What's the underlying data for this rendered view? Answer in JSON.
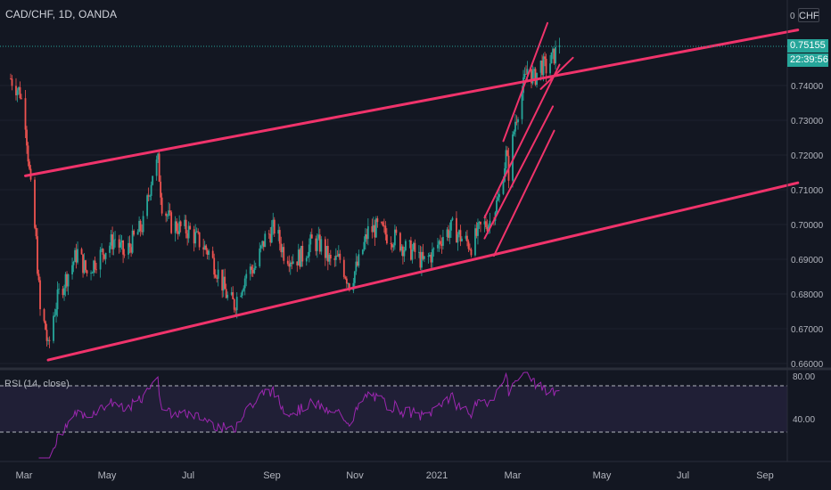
{
  "header": {
    "symbol": "CAD/CHF, 1D, OANDA",
    "currency_button": "CHF"
  },
  "price_axis": {
    "ticks": [
      "0.74000",
      "0.73000",
      "0.72000",
      "0.71000",
      "0.70000",
      "0.69000",
      "0.68000",
      "0.67000",
      "0.66000"
    ],
    "cut_tick": "0",
    "last_price": "0.75155",
    "countdown": "22:39:56"
  },
  "rsi": {
    "label": "RSI (14, close)",
    "ticks": [
      "80.00",
      "40.00"
    ]
  },
  "time_axis": {
    "labels": [
      "Mar",
      "May",
      "Jul",
      "Sep",
      "Nov",
      "2021",
      "Mar",
      "May",
      "Jul",
      "Sep"
    ]
  },
  "colors": {
    "background": "#131722",
    "up_candle": "#26a69a",
    "down_candle": "#ef5350",
    "trendline": "#f0336b",
    "rsi_line": "#9c27b0",
    "price_tag": "#26a69a"
  },
  "chart_data": {
    "type": "candlestick",
    "title": "CAD/CHF, 1D, OANDA",
    "ylim": [
      0.658,
      0.755
    ],
    "price_path": [
      [
        "2020-02-20",
        0.742
      ],
      [
        "2020-02-27",
        0.738
      ],
      [
        "2020-03-02",
        0.73
      ],
      [
        "2020-03-06",
        0.71
      ],
      [
        "2020-03-10",
        0.695
      ],
      [
        "2020-03-13",
        0.675
      ],
      [
        "2020-03-17",
        0.67
      ],
      [
        "2020-03-19",
        0.664
      ],
      [
        "2020-03-23",
        0.674
      ],
      [
        "2020-03-27",
        0.68
      ],
      [
        "2020-04-03",
        0.686
      ],
      [
        "2020-04-10",
        0.692
      ],
      [
        "2020-04-17",
        0.686
      ],
      [
        "2020-04-24",
        0.69
      ],
      [
        "2020-05-01",
        0.693
      ],
      [
        "2020-05-08",
        0.696
      ],
      [
        "2020-05-15",
        0.691
      ],
      [
        "2020-05-22",
        0.696
      ],
      [
        "2020-05-29",
        0.7
      ],
      [
        "2020-06-05",
        0.715
      ],
      [
        "2020-06-09",
        0.718
      ],
      [
        "2020-06-12",
        0.706
      ],
      [
        "2020-06-19",
        0.7
      ],
      [
        "2020-06-26",
        0.699
      ],
      [
        "2020-07-03",
        0.698
      ],
      [
        "2020-07-10",
        0.695
      ],
      [
        "2020-07-17",
        0.692
      ],
      [
        "2020-07-24",
        0.686
      ],
      [
        "2020-07-31",
        0.679
      ],
      [
        "2020-08-05",
        0.677
      ],
      [
        "2020-08-14",
        0.686
      ],
      [
        "2020-08-21",
        0.688
      ],
      [
        "2020-08-28",
        0.696
      ],
      [
        "2020-09-04",
        0.699
      ],
      [
        "2020-09-11",
        0.692
      ],
      [
        "2020-09-18",
        0.69
      ],
      [
        "2020-09-25",
        0.691
      ],
      [
        "2020-10-02",
        0.695
      ],
      [
        "2020-10-09",
        0.694
      ],
      [
        "2020-10-16",
        0.689
      ],
      [
        "2020-10-23",
        0.69
      ],
      [
        "2020-10-30",
        0.683
      ],
      [
        "2020-11-06",
        0.689
      ],
      [
        "2020-11-13",
        0.698
      ],
      [
        "2020-11-20",
        0.699
      ],
      [
        "2020-11-27",
        0.697
      ],
      [
        "2020-12-04",
        0.696
      ],
      [
        "2020-12-11",
        0.693
      ],
      [
        "2020-12-18",
        0.692
      ],
      [
        "2020-12-24",
        0.689
      ],
      [
        "2021-01-01",
        0.692
      ],
      [
        "2021-01-08",
        0.697
      ],
      [
        "2021-01-15",
        0.699
      ],
      [
        "2021-01-22",
        0.696
      ],
      [
        "2021-01-29",
        0.694
      ],
      [
        "2021-02-05",
        0.699
      ],
      [
        "2021-02-12",
        0.701
      ],
      [
        "2021-02-19",
        0.708
      ],
      [
        "2021-02-24",
        0.72
      ],
      [
        "2021-02-26",
        0.715
      ],
      [
        "2021-03-03",
        0.73
      ],
      [
        "2021-03-08",
        0.738
      ],
      [
        "2021-03-12",
        0.745
      ],
      [
        "2021-03-17",
        0.742
      ],
      [
        "2021-03-22",
        0.746
      ],
      [
        "2021-03-26",
        0.745
      ],
      [
        "2021-03-31",
        0.748
      ],
      [
        "2021-04-05",
        0.7516
      ]
    ],
    "last_close": 0.75155,
    "trendlines": [
      {
        "name": "upper channel",
        "from": [
          "2020-03-02",
          0.714
        ],
        "to": [
          "2021-09-30",
          0.756
        ]
      },
      {
        "name": "lower channel",
        "from": [
          "2020-03-19",
          0.661
        ],
        "to": [
          "2021-09-30",
          0.712
        ]
      },
      {
        "name": "steep upper",
        "from": [
          "2021-02-22",
          0.724
        ],
        "to": [
          "2021-03-27",
          0.758
        ]
      },
      {
        "name": "steep lower 1",
        "from": [
          "2021-02-08",
          0.702
        ],
        "to": [
          "2021-04-05",
          0.746
        ]
      },
      {
        "name": "steep lower 2",
        "from": [
          "2021-02-08",
          0.696
        ],
        "to": [
          "2021-03-31",
          0.734
        ]
      },
      {
        "name": "steep lower 3",
        "from": [
          "2021-03-22",
          0.739
        ],
        "to": [
          "2021-04-15",
          0.748
        ]
      },
      {
        "name": "mid support",
        "from": [
          "2021-02-15",
          0.691
        ],
        "to": [
          "2021-04-01",
          0.727
        ]
      }
    ],
    "rsi_bands": [
      30,
      70
    ]
  }
}
